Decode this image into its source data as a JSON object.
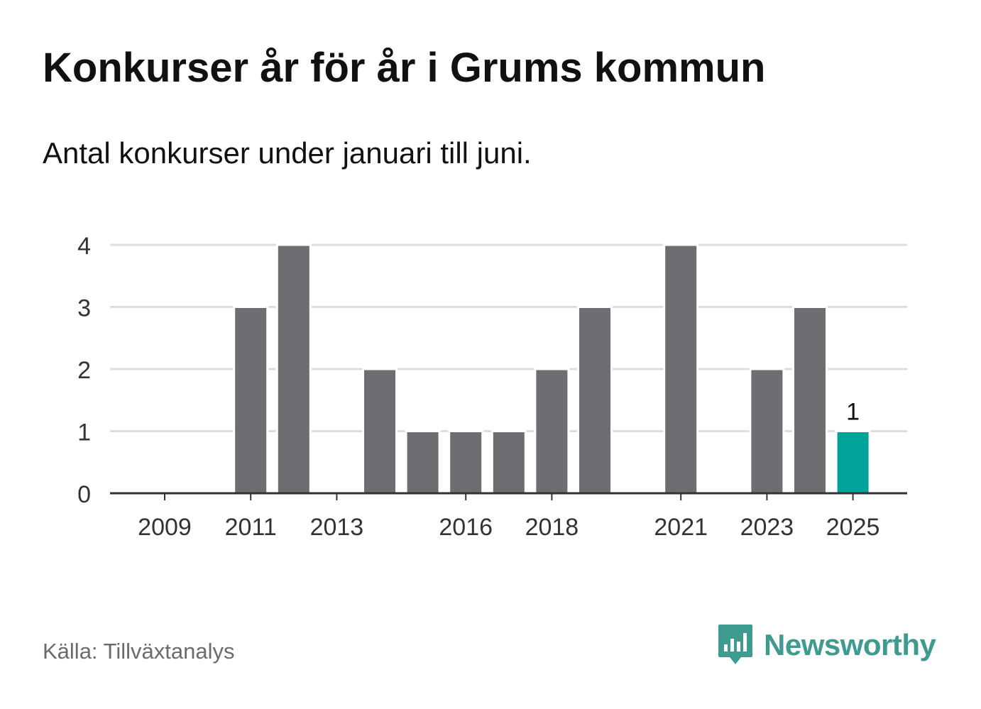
{
  "header": {
    "title": "Konkurser år för år i Grums kommun",
    "subtitle": "Antal konkurser under januari till juni."
  },
  "footer": {
    "source": "Källa: Tillväxtanalys",
    "brand": "Newsworthy"
  },
  "colors": {
    "bar": "#6e6d72",
    "highlight": "#00a39a",
    "grid": "#dddddd",
    "axis": "#333333",
    "brand": "#3f9a8f"
  },
  "chart_data": {
    "type": "bar",
    "categories": [
      "2009",
      "2010",
      "2011",
      "2012",
      "2013",
      "2014",
      "2015",
      "2016",
      "2017",
      "2018",
      "2019",
      "2020",
      "2021",
      "2022",
      "2023",
      "2024",
      "2025"
    ],
    "values": [
      0,
      0,
      3,
      4,
      0,
      2,
      1,
      1,
      1,
      2,
      3,
      0,
      4,
      0,
      2,
      3,
      1
    ],
    "x_tick_labels": [
      "2009",
      "2011",
      "2013",
      "2016",
      "2018",
      "2021",
      "2023",
      "2025"
    ],
    "y_ticks": [
      0,
      1,
      2,
      3,
      4
    ],
    "ylim": [
      0,
      4
    ],
    "grid": true,
    "highlight_category": "2025",
    "annotations": [
      {
        "category": "2025",
        "text": "1"
      }
    ]
  }
}
